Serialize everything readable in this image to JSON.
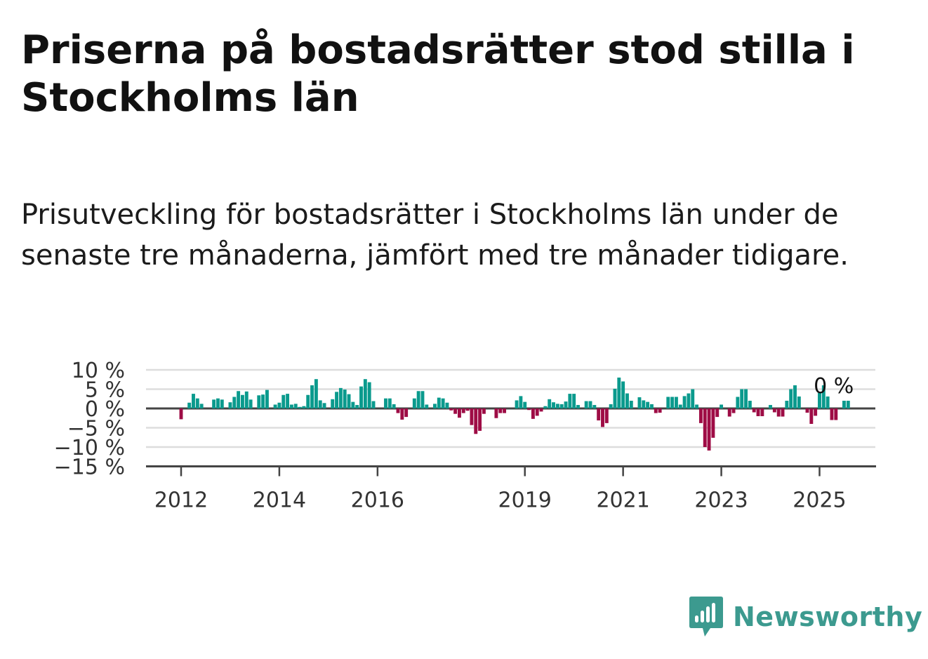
{
  "title": "Priserna på bostadsrätter stod stilla i Stockholms län",
  "subtitle": "Prisutveckling för bostadsrätter i Stockholms län under de senaste tre månaderna, jämfört med tre månader tidigare.",
  "brand": {
    "name": "Newsworthy",
    "color": "#3c9a8f",
    "icon": "newsworthy-logo-icon"
  },
  "chart_data": {
    "type": "bar",
    "title": "Priserna på bostadsrätter stod stilla i Stockholms län",
    "subtitle": "Prisutveckling för bostadsrätter i Stockholms län under de senaste tre månaderna, jämfört med tre månader tidigare.",
    "xlabel": "",
    "ylabel": "",
    "unit": "%",
    "x_start": "2012-01",
    "x_interval": "month",
    "x_ticks": [
      "2012",
      "2014",
      "2016",
      "2019",
      "2021",
      "2023",
      "2025"
    ],
    "y_ticks": [
      "10 %",
      "5 %",
      "0 %",
      "−5 %",
      "−10 %",
      "−15 %"
    ],
    "ylim": [
      -15,
      10
    ],
    "grid": true,
    "colors": {
      "positive": "#0a9a8d",
      "negative": "#9e0c45",
      "grid": "#dddddd",
      "axis": "#444444"
    },
    "last_value_label": "0 %",
    "values": [
      -2.8,
      0,
      1.5,
      3.8,
      2.6,
      1.2,
      0,
      0,
      2.3,
      2.6,
      2.3,
      0,
      1.6,
      3.0,
      4.5,
      3.5,
      4.4,
      2.3,
      0,
      3.4,
      3.6,
      4.8,
      0,
      1.0,
      1.5,
      3.5,
      3.8,
      1.0,
      1.2,
      0.4,
      0.6,
      3.5,
      6.0,
      7.6,
      2.1,
      1.4,
      0,
      2.4,
      4.3,
      5.3,
      4.9,
      3.7,
      1.7,
      0.9,
      5.7,
      7.6,
      6.8,
      1.9,
      0,
      0,
      2.6,
      2.6,
      1.1,
      -1.2,
      -2.9,
      -2.2,
      0,
      2.6,
      4.5,
      4.5,
      1.0,
      0,
      1.2,
      2.8,
      2.6,
      1.5,
      -0.5,
      -1.4,
      -2.4,
      -1.2,
      -0.6,
      -4.3,
      -6.6,
      -5.8,
      -1.4,
      0,
      0,
      -2.5,
      -1.2,
      -1.2,
      0,
      0,
      2.1,
      3.2,
      1.7,
      -0.4,
      -2.7,
      -1.9,
      -0.8,
      0.6,
      2.4,
      1.6,
      1.2,
      1.1,
      1.8,
      3.8,
      3.8,
      0.9,
      0,
      1.9,
      1.9,
      0.9,
      -3.1,
      -4.8,
      -3.8,
      1.1,
      5.1,
      8.0,
      7.0,
      3.9,
      2.0,
      0,
      2.9,
      2.1,
      1.7,
      1.1,
      -1.2,
      -1.1,
      0,
      3.0,
      3.0,
      3.0,
      1.0,
      3.2,
      3.9,
      5.0,
      1.0,
      -3.8,
      -10.0,
      -10.9,
      -7.6,
      -2.2,
      1.0,
      0,
      -2.1,
      -1.2,
      3.0,
      5.0,
      5.0,
      2.0,
      -1.0,
      -2.0,
      -2.0,
      0,
      0.9,
      -1.0,
      -2.1,
      -2.1,
      2.0,
      5.0,
      6.0,
      3.1,
      0,
      -1.1,
      -4.0,
      -1.9,
      4.0,
      6.0,
      3.1,
      -3.0,
      -3.0,
      0,
      2.0,
      2.0
    ]
  }
}
